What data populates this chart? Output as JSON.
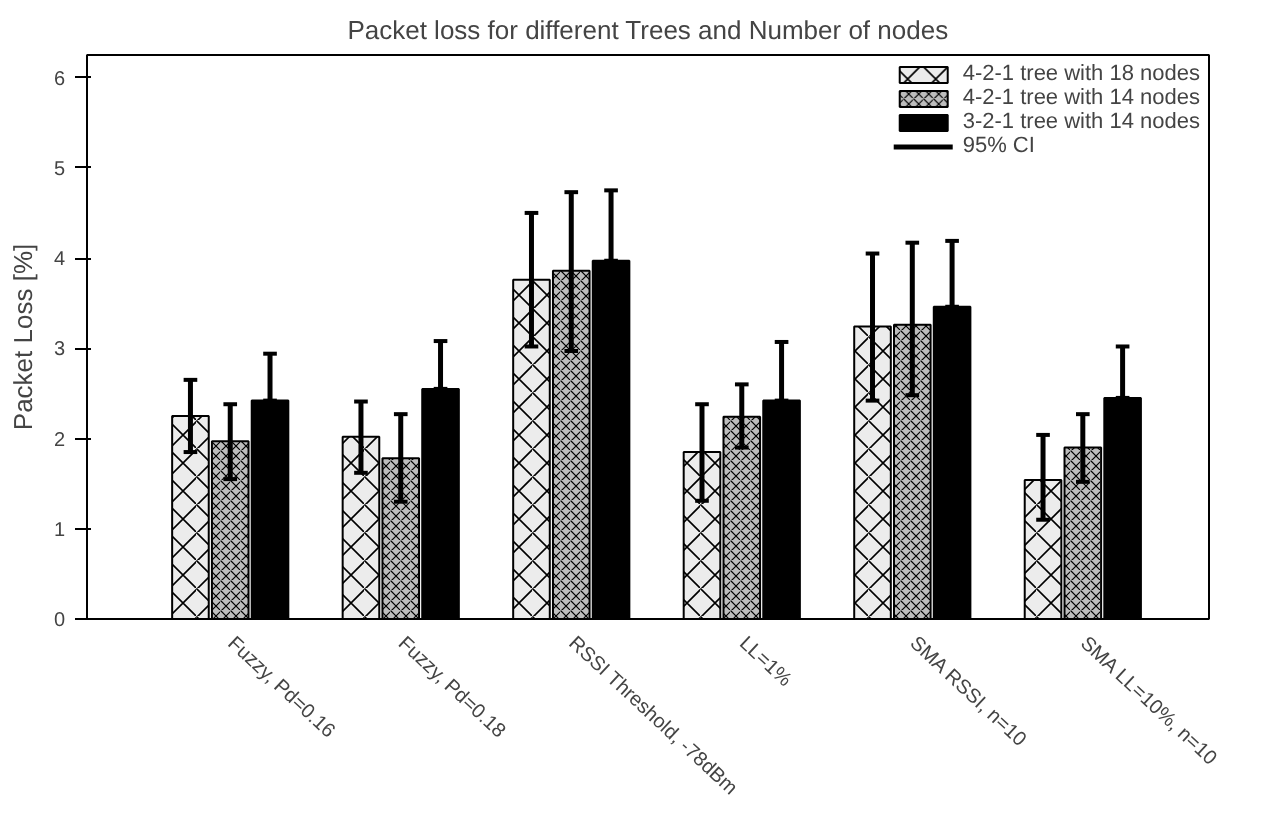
{
  "chart_data": {
    "type": "bar",
    "title": "Packet loss for different Trees and Number of nodes",
    "ylabel": "Packet Loss [%]",
    "categories": [
      "Fuzzy, Pd=0.16",
      "Fuzzy, Pd=0.18",
      "RSSI Threshold, -78dBm",
      "LL=1%",
      "SMA RSSI, n=10",
      "SMA LL=10%, n=10"
    ],
    "series": [
      {
        "name": "4-2-1 tree with 18 nodes",
        "color": "#ececec",
        "values": [
          2.25,
          2.02,
          3.76,
          1.85,
          3.24,
          1.54
        ],
        "errors": [
          [
            1.85,
            2.65
          ],
          [
            1.62,
            2.41
          ],
          [
            3.02,
            4.5
          ],
          [
            1.31,
            2.38
          ],
          [
            2.42,
            4.05
          ],
          [
            1.1,
            2.04
          ]
        ]
      },
      {
        "name": "4-2-1 tree with 14 nodes",
        "color": "#bdbdbd",
        "values": [
          1.97,
          1.78,
          3.86,
          2.24,
          3.26,
          1.9
        ],
        "errors": [
          [
            1.55,
            2.38
          ],
          [
            1.3,
            2.27
          ],
          [
            2.97,
            4.73
          ],
          [
            1.9,
            2.6
          ],
          [
            2.48,
            4.17
          ],
          [
            1.52,
            2.27
          ]
        ]
      },
      {
        "name": "3-2-1 tree with 14 nodes",
        "color": "#000000",
        "values": [
          2.42,
          2.55,
          3.97,
          2.42,
          3.46,
          2.45
        ],
        "errors": [
          [
            2.42,
            2.94
          ],
          [
            2.55,
            3.08
          ],
          [
            3.97,
            4.75
          ],
          [
            2.42,
            3.07
          ],
          [
            3.46,
            4.19
          ],
          [
            2.45,
            3.02
          ]
        ]
      }
    ],
    "annotations": [
      "95% CI"
    ],
    "ylim": [
      0,
      6.25
    ],
    "yticks": [
      0,
      1,
      2,
      3,
      4,
      5,
      6
    ],
    "grid": false,
    "legend": "top right"
  }
}
